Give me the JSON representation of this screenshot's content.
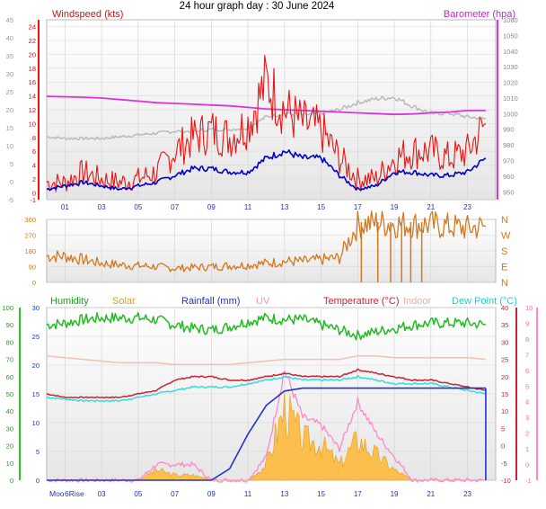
{
  "title": "24 hour graph day : 30 June 2024",
  "colors": {
    "windspeed": "#ee1111",
    "windavg": "#0000cc",
    "barometer": "#dd33dd",
    "gust_baro": "#b8b8b8",
    "direction": "#d4781e",
    "humidity": "#22bb22",
    "solar": "#ffb733",
    "rainfall": "#2233cc",
    "uv": "#ff88cc",
    "temperature": "#cc2233",
    "indoor": "#f5c0b0",
    "dewpoint": "#33dddd",
    "panel_bg_top": "#ffffff",
    "panel_bg_bottom": "#e6e6e6"
  },
  "xaxis": {
    "ticks": [
      "01",
      "03",
      "05",
      "07",
      "09",
      "11",
      "13",
      "15",
      "17",
      "19",
      "21",
      "23"
    ],
    "ticks_bottom": [
      "03",
      "05",
      "07",
      "09",
      "11",
      "13",
      "15",
      "17",
      "19",
      "21",
      "23"
    ],
    "moon_label": "Moo",
    "moonrise_label": "6Rise"
  },
  "chart_data": [
    {
      "type": "line",
      "panel": "wind",
      "labels": {
        "left": "Windspeed (kts)",
        "right": "Barometer (hpa)"
      },
      "left_axis": {
        "range": [
          -5,
          45
        ],
        "ticks": [
          -5,
          0,
          5,
          10,
          15,
          20,
          25,
          30,
          35,
          40,
          45
        ]
      },
      "inner_axis": {
        "range": [
          -1,
          25
        ],
        "ticks": [
          -1,
          0,
          2,
          4,
          6,
          8,
          10,
          12,
          14,
          16,
          18,
          20,
          22,
          24
        ]
      },
      "right_axis": {
        "range": [
          945,
          1060
        ],
        "ticks": [
          950,
          960,
          970,
          980,
          990,
          1000,
          1010,
          1020,
          1030,
          1040,
          1050,
          1060
        ]
      },
      "x_hours": [
        0,
        1,
        2,
        3,
        4,
        5,
        6,
        7,
        8,
        9,
        10,
        11,
        12,
        13,
        14,
        15,
        16,
        17,
        18,
        19,
        20,
        21,
        22,
        23,
        24
      ],
      "series": [
        {
          "key": "windspeed",
          "axis": "inner",
          "values": [
            1.5,
            1.5,
            3,
            2,
            1.5,
            2,
            3,
            6,
            8,
            9,
            8,
            10,
            16,
            12,
            10,
            9,
            5,
            2,
            2,
            5,
            6,
            6,
            5,
            6,
            10
          ]
        },
        {
          "key": "windavg",
          "axis": "inner",
          "values": [
            0.5,
            1,
            1.5,
            1,
            0.5,
            1,
            1.5,
            2.5,
            3.5,
            3.5,
            3,
            3,
            5,
            6,
            5,
            5,
            2.5,
            0.5,
            1,
            3,
            3,
            2.5,
            2.5,
            3,
            5
          ]
        },
        {
          "key": "barometer",
          "axis": "right",
          "values": [
            1011,
            1010.8,
            1010.5,
            1010,
            1009,
            1008,
            1007,
            1006.5,
            1006,
            1005.5,
            1005,
            1004,
            1003,
            1002.5,
            1002,
            1001.5,
            1001,
            1000.5,
            1000,
            999.5,
            999.8,
            1000.5,
            1001,
            1002,
            1002
          ]
        },
        {
          "key": "gust_baro",
          "axis": "left",
          "values": [
            12.5,
            12,
            12,
            12,
            12.5,
            13,
            13.5,
            14,
            14,
            14.5,
            14.5,
            15,
            18,
            19,
            18.5,
            19,
            20,
            22,
            23,
            23.5,
            21,
            19,
            19,
            18,
            17.5
          ]
        }
      ]
    },
    {
      "type": "line",
      "panel": "direction",
      "left_axis": {
        "range": [
          0,
          360
        ],
        "ticks": [
          0,
          90,
          180,
          270,
          360
        ]
      },
      "right_labels": [
        "N",
        "W",
        "S",
        "E",
        "N"
      ],
      "x_hours": [
        0,
        1,
        2,
        3,
        4,
        5,
        6,
        7,
        8,
        9,
        10,
        11,
        12,
        13,
        14,
        15,
        16,
        17,
        18,
        19,
        20,
        21,
        22,
        23,
        24
      ],
      "series": [
        {
          "key": "direction",
          "values": [
            150,
            150,
            130,
            110,
            100,
            95,
            90,
            80,
            85,
            90,
            95,
            100,
            110,
            120,
            120,
            130,
            140,
            330,
            340,
            335,
            330,
            330,
            320,
            310,
            320
          ]
        }
      ]
    },
    {
      "type": "area",
      "panel": "multi",
      "labels": {
        "humidity": "Humidity",
        "solar": "Solar",
        "rainfall": "Rainfall (mm)",
        "uv": "UV",
        "temperature": "Temperature (°C)",
        "indoor": "Indoor",
        "dewpoint": "Dew Point (°C)"
      },
      "humidity_axis": {
        "range": [
          0,
          100
        ],
        "ticks": [
          0,
          10,
          20,
          30,
          40,
          50,
          60,
          70,
          80,
          90,
          100
        ]
      },
      "rain_axis": {
        "range": [
          0,
          30
        ],
        "ticks": [
          0,
          5,
          10,
          15,
          20,
          25,
          30
        ]
      },
      "temp_axis": {
        "range": [
          -10,
          40
        ],
        "ticks": [
          -10,
          -5,
          0,
          5,
          10,
          15,
          20,
          25,
          30,
          35,
          40
        ]
      },
      "uv_axis": {
        "range": [
          -1,
          10
        ],
        "ticks": [
          -1,
          0,
          1,
          2,
          3,
          4,
          5,
          6,
          7,
          8,
          9,
          10
        ]
      },
      "x_hours": [
        0,
        1,
        2,
        3,
        4,
        5,
        6,
        7,
        8,
        9,
        10,
        11,
        12,
        13,
        14,
        15,
        16,
        17,
        18,
        19,
        20,
        21,
        22,
        23,
        24
      ],
      "series": [
        {
          "key": "humidity",
          "axis": "humidity",
          "values": [
            90,
            91,
            93,
            94,
            94,
            94,
            93,
            90,
            88,
            87,
            89,
            92,
            94,
            93,
            93,
            90,
            87,
            84,
            86,
            88,
            90,
            91,
            91,
            91,
            90
          ]
        },
        {
          "key": "temperature",
          "axis": "temp",
          "values": [
            15,
            14,
            14,
            14,
            14,
            15,
            16,
            19,
            20,
            20,
            19,
            19,
            20,
            21,
            20,
            20,
            20,
            22,
            21,
            20,
            19,
            19,
            18,
            17,
            16
          ]
        },
        {
          "key": "indoor",
          "axis": "temp",
          "values": [
            26,
            25.5,
            25,
            24.5,
            24,
            24,
            24,
            23.5,
            23.5,
            23.5,
            23.5,
            24,
            24.5,
            25,
            25,
            25,
            25,
            26,
            26,
            25.5,
            25.5,
            25.5,
            25.5,
            25.5,
            25
          ]
        },
        {
          "key": "dewpoint",
          "axis": "temp",
          "values": [
            14,
            13.5,
            13,
            13,
            13,
            14,
            15,
            16,
            17,
            17,
            17,
            18,
            19,
            20,
            19,
            19,
            19,
            20,
            19,
            18,
            18,
            18,
            17,
            16,
            15
          ]
        },
        {
          "key": "rainfall",
          "axis": "rain",
          "values": [
            0,
            0,
            0,
            0,
            0,
            0,
            0,
            0,
            0,
            0,
            2,
            8,
            13,
            15.5,
            16,
            16,
            16,
            16,
            16,
            16,
            16,
            16,
            16,
            16,
            16
          ]
        },
        {
          "key": "solar",
          "axis": "rain",
          "values": [
            0,
            0,
            0,
            0,
            0,
            0,
            2,
            1,
            1,
            0,
            0,
            0,
            3,
            14,
            8,
            7,
            3,
            8,
            5,
            2,
            0,
            0,
            0,
            0,
            0
          ]
        },
        {
          "key": "uv",
          "axis": "uv",
          "values": [
            -1,
            -1,
            -1,
            -1,
            -1,
            -1,
            0,
            0,
            0,
            -1,
            -1,
            -1,
            0.5,
            6,
            3,
            2.5,
            1,
            4,
            2,
            0.5,
            -1,
            -1,
            -1,
            -1,
            -1
          ]
        }
      ]
    }
  ]
}
